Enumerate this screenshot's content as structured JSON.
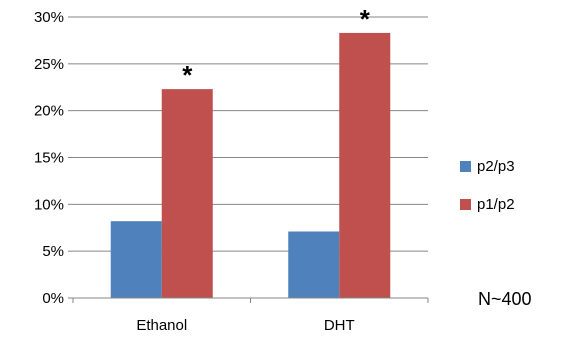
{
  "chart_data": {
    "type": "bar",
    "categories": [
      "Ethanol",
      "DHT"
    ],
    "series": [
      {
        "name": "p2/p3",
        "values": [
          8.2,
          7.1
        ],
        "color": "#4f81bd"
      },
      {
        "name": "p1/p2",
        "values": [
          22.3,
          28.3
        ],
        "color": "#c0504d"
      }
    ],
    "annotations": [
      {
        "category": "Ethanol",
        "series": "p1/p2",
        "text": "*"
      },
      {
        "category": "DHT",
        "series": "p1/p2",
        "text": "*"
      }
    ],
    "yticks": [
      "0%",
      "5%",
      "10%",
      "15%",
      "20%",
      "25%",
      "30%"
    ],
    "ylim": [
      0,
      30
    ],
    "grid": true,
    "legend_position": "right"
  },
  "note": "N~400"
}
